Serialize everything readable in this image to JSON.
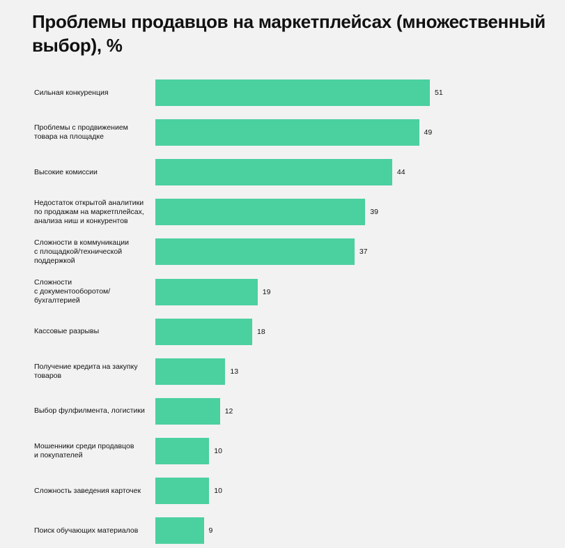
{
  "title": "Проблемы продавцов на маркетплейсах (множественный выбор), %",
  "colors": {
    "bar": "#4bd0a0",
    "background": "#f2f2f2"
  },
  "chart_data": {
    "type": "bar",
    "orientation": "horizontal",
    "title": "Проблемы продавцов на маркетплейсах (множественный выбор), %",
    "xlabel": "",
    "ylabel": "",
    "xlim": [
      0,
      51
    ],
    "grid": false,
    "categories": [
      "Сильная конкуренция",
      "Проблемы с продвижением\nтовара на площадке",
      "Высокие комиссии",
      "Недостаток открытой аналитики\nпо продажам на маркетплейсах,\nанализа ниш и конкурентов",
      "Сложности в коммуникации\nс площадкой/технической\nподдержкой",
      "Сложности\nс документооборотом/\nбухгалтерией",
      "Кассовые разрывы",
      "Получение кредита на закупку\nтоваров",
      "Выбор фулфилмента, логистики",
      "Мошенники среди продавцов\nи покупателей",
      "Сложность заведения карточек",
      "Поиск обучающих материалов"
    ],
    "values": [
      51,
      49,
      44,
      39,
      37,
      19,
      18,
      13,
      12,
      10,
      10,
      9
    ]
  }
}
